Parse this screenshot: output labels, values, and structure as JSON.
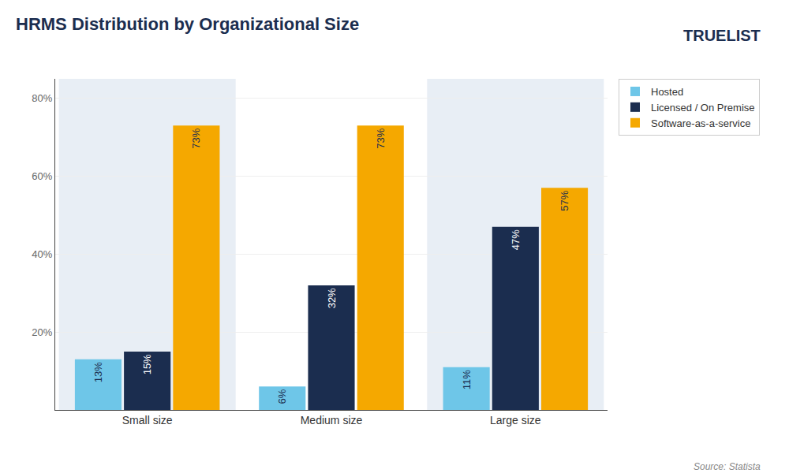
{
  "chart_data": {
    "type": "bar",
    "title": "HRMS Distribution by Organizational Size",
    "categories": [
      "Small size",
      "Medium size",
      "Large size"
    ],
    "series": [
      {
        "name": "Hosted",
        "color": "#6ec6e8",
        "values": [
          13,
          6,
          11
        ],
        "value_labels": [
          "13%",
          "6%",
          "11%"
        ]
      },
      {
        "name": "Licensed / On Premise",
        "color": "#1b2d4f",
        "values": [
          15,
          32,
          47
        ],
        "value_labels": [
          "15%",
          "32%",
          "47%"
        ]
      },
      {
        "name": "Software-as-a-service",
        "color": "#f5a800",
        "values": [
          73,
          73,
          57
        ],
        "value_labels": [
          "73%",
          "73%",
          "57%"
        ]
      }
    ],
    "ylim": [
      0,
      85
    ],
    "yticks": [
      {
        "value": 20,
        "label": "20%"
      },
      {
        "value": 40,
        "label": "40%"
      },
      {
        "value": 60,
        "label": "60%"
      },
      {
        "value": 80,
        "label": "80%"
      }
    ],
    "grid": true,
    "legend": "upper right",
    "data_labels": true,
    "annotations": [
      "TRUELIST",
      "Source: Statista"
    ]
  }
}
